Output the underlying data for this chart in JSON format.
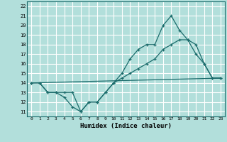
{
  "background_color": "#b2dfdb",
  "grid_color": "#ffffff",
  "line_color": "#1a6b6b",
  "xlabel": "Humidex (Indice chaleur)",
  "xlim": [
    -0.5,
    23.5
  ],
  "ylim": [
    10.5,
    22.5
  ],
  "xticks": [
    0,
    1,
    2,
    3,
    4,
    5,
    6,
    7,
    8,
    9,
    10,
    11,
    12,
    13,
    14,
    15,
    16,
    17,
    18,
    19,
    20,
    21,
    22,
    23
  ],
  "yticks": [
    11,
    12,
    13,
    14,
    15,
    16,
    17,
    18,
    19,
    20,
    21,
    22
  ],
  "series": [
    {
      "x": [
        0,
        1,
        2,
        3,
        4,
        5,
        6,
        7,
        8,
        9,
        10,
        11,
        12,
        13,
        14,
        15,
        16,
        17,
        18,
        19,
        20,
        21,
        22,
        23
      ],
      "y": [
        14,
        14,
        13,
        13,
        13,
        13,
        11,
        12,
        12,
        13,
        14,
        15,
        16.5,
        17.5,
        18,
        18,
        20,
        21,
        19.5,
        18.5,
        17,
        16,
        14.5,
        14.5
      ],
      "marker": true
    },
    {
      "x": [
        0,
        1,
        2,
        3,
        4,
        5,
        6,
        7,
        8,
        9,
        10,
        11,
        12,
        13,
        14,
        15,
        16,
        17,
        18,
        19,
        20,
        21,
        22,
        23
      ],
      "y": [
        14,
        14,
        13,
        13,
        12.5,
        11.5,
        11,
        12,
        12,
        13,
        14,
        14.5,
        15,
        15.5,
        16,
        16.5,
        17.5,
        18,
        18.5,
        18.5,
        18,
        16,
        14.5,
        14.5
      ],
      "marker": true
    },
    {
      "x": [
        0,
        23
      ],
      "y": [
        14,
        14.5
      ],
      "marker": false
    }
  ]
}
